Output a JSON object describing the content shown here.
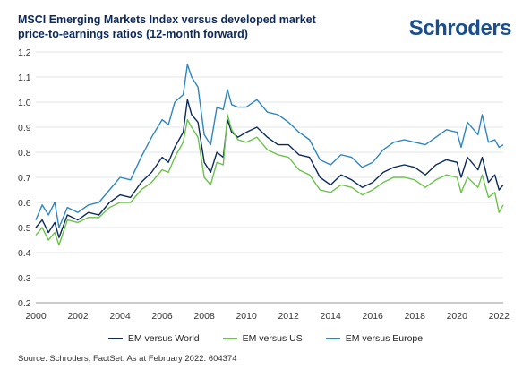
{
  "title": "MSCI Emerging Markets Index versus developed market price-to-earnings ratios (12-month forward)",
  "logo": "Schroders",
  "source": "Source: Schroders, FactSet. As at February 2022. 604374",
  "chart_data": {
    "type": "line",
    "title": "MSCI Emerging Markets Index versus developed market price-to-earnings ratios (12-month forward)",
    "xlim": [
      2000,
      2022.2
    ],
    "ylim": [
      0.2,
      1.2
    ],
    "xticks": [
      "2000",
      "2002",
      "2004",
      "2006",
      "2008",
      "2010",
      "2012",
      "2014",
      "2016",
      "2018",
      "2020",
      "2022"
    ],
    "yticks": [
      "0.2",
      "0.3",
      "0.4",
      "0.5",
      "0.6",
      "0.7",
      "0.8",
      "0.9",
      "1.0",
      "1.1",
      "1.2"
    ],
    "grid": "horizontal",
    "legend_position": "bottom",
    "series": [
      {
        "name": "EM versus World",
        "color": "#0b2a5b",
        "x": [
          2000,
          2000.3,
          2000.6,
          2000.9,
          2001.1,
          2001.5,
          2002,
          2002.5,
          2003,
          2003.5,
          2004,
          2004.5,
          2005,
          2005.5,
          2006,
          2006.3,
          2006.6,
          2007,
          2007.2,
          2007.4,
          2007.7,
          2008,
          2008.3,
          2008.6,
          2008.9,
          2009.1,
          2009.3,
          2009.6,
          2010,
          2010.5,
          2011,
          2011.5,
          2012,
          2012.5,
          2013,
          2013.5,
          2014,
          2014.5,
          2015,
          2015.5,
          2016,
          2016.5,
          2017,
          2017.5,
          2018,
          2018.5,
          2019,
          2019.5,
          2020,
          2020.2,
          2020.5,
          2021,
          2021.2,
          2021.5,
          2021.8,
          2022,
          2022.2
        ],
        "y": [
          0.5,
          0.53,
          0.48,
          0.52,
          0.46,
          0.55,
          0.53,
          0.56,
          0.55,
          0.6,
          0.63,
          0.62,
          0.68,
          0.72,
          0.78,
          0.76,
          0.82,
          0.88,
          1.01,
          0.95,
          0.92,
          0.76,
          0.72,
          0.8,
          0.78,
          0.93,
          0.88,
          0.86,
          0.88,
          0.9,
          0.86,
          0.83,
          0.83,
          0.79,
          0.78,
          0.7,
          0.67,
          0.71,
          0.69,
          0.66,
          0.68,
          0.72,
          0.74,
          0.75,
          0.74,
          0.71,
          0.75,
          0.77,
          0.76,
          0.7,
          0.78,
          0.73,
          0.78,
          0.68,
          0.71,
          0.65,
          0.67
        ]
      },
      {
        "name": "EM versus US",
        "color": "#6cc24a",
        "x": [
          2000,
          2000.3,
          2000.6,
          2000.9,
          2001.1,
          2001.5,
          2002,
          2002.5,
          2003,
          2003.5,
          2004,
          2004.5,
          2005,
          2005.5,
          2006,
          2006.3,
          2006.6,
          2007,
          2007.2,
          2007.4,
          2007.7,
          2008,
          2008.3,
          2008.6,
          2008.9,
          2009.1,
          2009.3,
          2009.6,
          2010,
          2010.5,
          2011,
          2011.5,
          2012,
          2012.5,
          2013,
          2013.5,
          2014,
          2014.5,
          2015,
          2015.5,
          2016,
          2016.5,
          2017,
          2017.5,
          2018,
          2018.5,
          2019,
          2019.5,
          2020,
          2020.2,
          2020.5,
          2021,
          2021.2,
          2021.5,
          2021.8,
          2022,
          2022.2
        ],
        "y": [
          0.47,
          0.5,
          0.45,
          0.48,
          0.43,
          0.53,
          0.52,
          0.54,
          0.54,
          0.58,
          0.6,
          0.6,
          0.65,
          0.68,
          0.73,
          0.72,
          0.78,
          0.84,
          0.93,
          0.9,
          0.86,
          0.7,
          0.67,
          0.76,
          0.75,
          0.95,
          0.89,
          0.85,
          0.84,
          0.86,
          0.81,
          0.79,
          0.78,
          0.73,
          0.71,
          0.65,
          0.64,
          0.67,
          0.66,
          0.63,
          0.65,
          0.68,
          0.7,
          0.7,
          0.69,
          0.66,
          0.69,
          0.71,
          0.7,
          0.64,
          0.7,
          0.66,
          0.71,
          0.62,
          0.64,
          0.56,
          0.59
        ]
      },
      {
        "name": "EM versus Europe",
        "color": "#2e86c1",
        "x": [
          2000,
          2000.3,
          2000.6,
          2000.9,
          2001.1,
          2001.5,
          2002,
          2002.5,
          2003,
          2003.5,
          2004,
          2004.5,
          2005,
          2005.5,
          2006,
          2006.3,
          2006.6,
          2007,
          2007.2,
          2007.4,
          2007.7,
          2008,
          2008.3,
          2008.6,
          2008.9,
          2009.1,
          2009.3,
          2009.6,
          2010,
          2010.5,
          2011,
          2011.5,
          2012,
          2012.5,
          2013,
          2013.5,
          2014,
          2014.5,
          2015,
          2015.5,
          2016,
          2016.5,
          2017,
          2017.5,
          2018,
          2018.5,
          2019,
          2019.5,
          2020,
          2020.2,
          2020.5,
          2021,
          2021.2,
          2021.5,
          2021.8,
          2022,
          2022.2
        ],
        "y": [
          0.53,
          0.59,
          0.55,
          0.6,
          0.5,
          0.58,
          0.56,
          0.59,
          0.6,
          0.65,
          0.7,
          0.69,
          0.78,
          0.86,
          0.93,
          0.91,
          1.0,
          1.03,
          1.15,
          1.1,
          1.06,
          0.87,
          0.83,
          0.98,
          0.97,
          1.05,
          0.99,
          0.98,
          0.98,
          1.01,
          0.96,
          0.95,
          0.92,
          0.88,
          0.85,
          0.77,
          0.75,
          0.79,
          0.78,
          0.74,
          0.76,
          0.81,
          0.84,
          0.85,
          0.84,
          0.83,
          0.86,
          0.89,
          0.88,
          0.82,
          0.92,
          0.87,
          0.95,
          0.84,
          0.85,
          0.82,
          0.83
        ]
      }
    ]
  }
}
